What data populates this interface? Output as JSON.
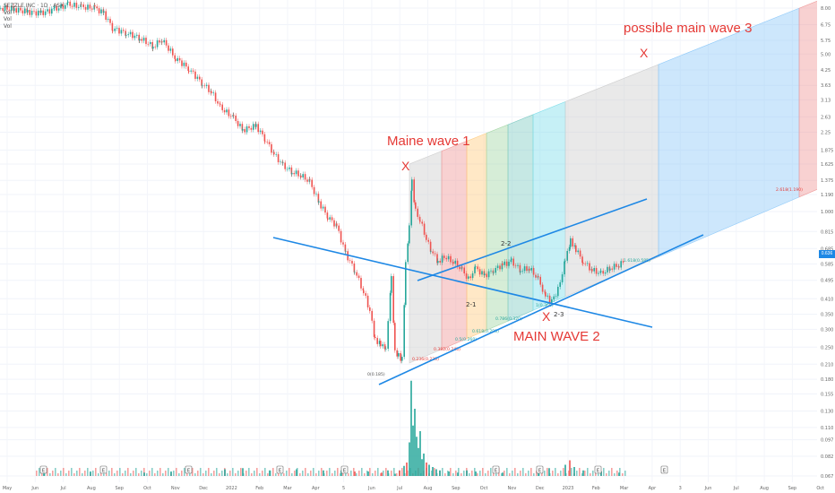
{
  "legend": {
    "symbol": "SEZZLE INC · 1D · ASX",
    "vol1": "Vol",
    "vol2": "Vol",
    "vol3": "Vol"
  },
  "chart_data": {
    "type": "candlestick",
    "title": "",
    "scale": "log",
    "grid": true,
    "price_ticks": [
      "8.00",
      "6.75",
      "5.75",
      "5.00",
      "4.25",
      "3.63",
      "3.13",
      "2.63",
      "2.25",
      "1.875",
      "1.625",
      "1.375",
      "1.190",
      "1.000",
      "0.815",
      "0.685",
      "0.585",
      "0.495",
      "0.410",
      "0.350",
      "0.300",
      "0.250",
      "0.210",
      "0.180",
      "0.155",
      "0.130",
      "0.110",
      "0.097",
      "0.082",
      "0.067"
    ],
    "last_price": "0.636",
    "time_ticks": [
      "May",
      "Jun",
      "Jul",
      "Aug",
      "Sep",
      "Oct",
      "Nov",
      "Dec",
      "2022",
      "Feb",
      "Mar",
      "Apr",
      "5",
      "Jun",
      "Jul",
      "Aug",
      "Sep",
      "Oct",
      "Nov",
      "Dec",
      "2023",
      "Feb",
      "Mar",
      "Apr",
      "3",
      "Jun",
      "Jul",
      "Aug",
      "Sep",
      "Oct"
    ],
    "price_path": [
      [
        0,
        8.0
      ],
      [
        15,
        7.9
      ],
      [
        30,
        7.7
      ],
      [
        45,
        7.6
      ],
      [
        60,
        7.9
      ],
      [
        75,
        8.3
      ],
      [
        90,
        8.1
      ],
      [
        105,
        8.0
      ],
      [
        115,
        7.6
      ],
      [
        125,
        6.5
      ],
      [
        140,
        6.2
      ],
      [
        155,
        5.9
      ],
      [
        170,
        5.4
      ],
      [
        180,
        5.8
      ],
      [
        195,
        4.8
      ],
      [
        210,
        4.3
      ],
      [
        225,
        3.7
      ],
      [
        235,
        3.4
      ],
      [
        245,
        2.9
      ],
      [
        260,
        2.6
      ],
      [
        270,
        2.3
      ],
      [
        285,
        2.4
      ],
      [
        295,
        2.1
      ],
      [
        305,
        1.8
      ],
      [
        315,
        1.6
      ],
      [
        325,
        1.5
      ],
      [
        335,
        1.45
      ],
      [
        345,
        1.35
      ],
      [
        355,
        1.1
      ],
      [
        365,
        0.95
      ],
      [
        375,
        0.86
      ],
      [
        385,
        0.65
      ],
      [
        395,
        0.55
      ],
      [
        405,
        0.44
      ],
      [
        412,
        0.36
      ],
      [
        418,
        0.27
      ],
      [
        424,
        0.26
      ],
      [
        430,
        0.24
      ],
      [
        436,
        0.52
      ],
      [
        440,
        0.24
      ],
      [
        444,
        0.23
      ],
      [
        448,
        0.22
      ],
      [
        452,
        0.58
      ],
      [
        456,
        0.85
      ],
      [
        459,
        1.35
      ],
      [
        463,
        1.0
      ],
      [
        468,
        0.92
      ],
      [
        475,
        0.75
      ],
      [
        480,
        0.68
      ],
      [
        488,
        0.6
      ],
      [
        495,
        0.63
      ],
      [
        505,
        0.6
      ],
      [
        515,
        0.55
      ],
      [
        522,
        0.5
      ],
      [
        530,
        0.56
      ],
      [
        540,
        0.52
      ],
      [
        550,
        0.55
      ],
      [
        560,
        0.58
      ],
      [
        570,
        0.6
      ],
      [
        580,
        0.55
      ],
      [
        590,
        0.56
      ],
      [
        600,
        0.5
      ],
      [
        608,
        0.42
      ],
      [
        615,
        0.4
      ],
      [
        622,
        0.45
      ],
      [
        630,
        0.6
      ],
      [
        636,
        0.75
      ],
      [
        642,
        0.68
      ],
      [
        650,
        0.6
      ],
      [
        660,
        0.55
      ],
      [
        670,
        0.53
      ],
      [
        680,
        0.56
      ],
      [
        690,
        0.58
      ],
      [
        696,
        0.6
      ]
    ],
    "volume_bars": [
      [
        440,
        0.02
      ],
      [
        445,
        0.05
      ],
      [
        450,
        0.09
      ],
      [
        453,
        0.12
      ],
      [
        456,
        0.3
      ],
      [
        458,
        0.85
      ],
      [
        460,
        0.45
      ],
      [
        462,
        0.6
      ],
      [
        464,
        0.35
      ],
      [
        466,
        0.25
      ],
      [
        468,
        0.4
      ],
      [
        470,
        0.15
      ],
      [
        472,
        0.2
      ],
      [
        475,
        0.12
      ],
      [
        478,
        0.1
      ],
      [
        482,
        0.08
      ],
      [
        486,
        0.06
      ],
      [
        490,
        0.05
      ],
      [
        500,
        0.04
      ],
      [
        510,
        0.03
      ],
      [
        520,
        0.05
      ],
      [
        530,
        0.04
      ],
      [
        560,
        0.03
      ],
      [
        600,
        0.05
      ],
      [
        612,
        0.07
      ],
      [
        630,
        0.1
      ],
      [
        635,
        0.14
      ],
      [
        640,
        0.08
      ],
      [
        650,
        0.05
      ],
      [
        670,
        0.04
      ],
      [
        690,
        0.03
      ],
      [
        48,
        0.05
      ],
      [
        100,
        0.04
      ],
      [
        160,
        0.03
      ],
      [
        190,
        0.04
      ],
      [
        250,
        0.06
      ],
      [
        270,
        0.07
      ],
      [
        300,
        0.05
      ],
      [
        330,
        0.06
      ],
      [
        360,
        0.05
      ],
      [
        380,
        0.05
      ],
      [
        395,
        0.04
      ],
      [
        410,
        0.04
      ],
      [
        425,
        0.03
      ],
      [
        432,
        0.05
      ]
    ],
    "fib_levels": [
      {
        "label": "0(0.185)"
      },
      {
        "label": "0.236(0.230)"
      },
      {
        "label": "0.382(0.245)"
      },
      {
        "label": "0.5(0.260)"
      },
      {
        "label": "0.618(0.290)"
      },
      {
        "label": "0.786(0.320)"
      },
      {
        "label": "1(0.365)"
      },
      {
        "label": "1.618(0.585)"
      },
      {
        "label": "2.618(1.190)"
      }
    ],
    "annotations": [
      {
        "text": "Maine wave 1",
        "mark": "X"
      },
      {
        "text": "MAIN WAVE 2",
        "mark": "X"
      },
      {
        "text": "possible main wave 3",
        "mark": "X"
      },
      {
        "text": "2-1"
      },
      {
        "text": "2-2"
      },
      {
        "text": "2-3"
      }
    ],
    "event_markers": [
      "E",
      "E",
      "E",
      "E",
      "E",
      "E",
      "E",
      "E",
      "E"
    ]
  },
  "colors": {
    "up": "#26a69a",
    "down": "#ef5350",
    "trendline": "#1e88e5",
    "annotation": "#e53935",
    "fib_grey": "#cfcfcf",
    "fib_red": "#ef9a9a",
    "fib_orange": "#ffcc80",
    "fib_green": "#a5d6a7",
    "fib_teal": "#80cbc4",
    "fib_cyan": "#80deea",
    "fib_blue": "#90caf9"
  }
}
